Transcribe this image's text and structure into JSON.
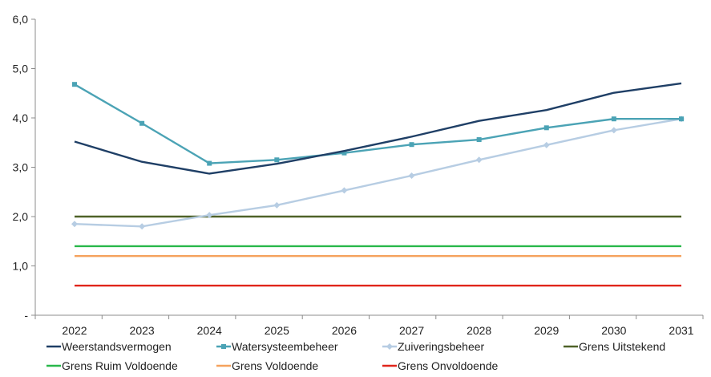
{
  "chart_data": {
    "type": "line",
    "categories": [
      "2022",
      "2023",
      "2024",
      "2025",
      "2026",
      "2027",
      "2028",
      "2029",
      "2030",
      "2031"
    ],
    "ylim": [
      0,
      6
    ],
    "yticks": [
      {
        "value": 0,
        "label": "-"
      },
      {
        "value": 1,
        "label": "1,0"
      },
      {
        "value": 2,
        "label": "2,0"
      },
      {
        "value": 3,
        "label": "3,0"
      },
      {
        "value": 4,
        "label": "4,0"
      },
      {
        "value": 5,
        "label": "5,0"
      },
      {
        "value": 6,
        "label": "6,0"
      }
    ],
    "grid": false,
    "legend_position": "bottom",
    "series": [
      {
        "name": "Weerstandsvermogen",
        "color": "#1f3f66",
        "marker": "none",
        "values": [
          3.52,
          3.11,
          2.87,
          3.07,
          3.33,
          3.62,
          3.94,
          4.16,
          4.51,
          4.7
        ]
      },
      {
        "name": "Watersysteembeheer",
        "color": "#4ba3b5",
        "marker": "square",
        "values": [
          4.68,
          3.89,
          3.08,
          3.15,
          3.29,
          3.46,
          3.56,
          3.8,
          3.98,
          3.98
        ]
      },
      {
        "name": "Zuiveringsbeheer",
        "color": "#b7cde3",
        "marker": "diamond",
        "values": [
          1.85,
          1.8,
          2.03,
          2.23,
          2.53,
          2.83,
          3.15,
          3.45,
          3.75,
          3.98
        ]
      },
      {
        "name": "Grens Uitstekend",
        "color": "#4f6228",
        "marker": "none",
        "values": [
          2.0,
          2.0,
          2.0,
          2.0,
          2.0,
          2.0,
          2.0,
          2.0,
          2.0,
          2.0
        ]
      },
      {
        "name": "Grens Ruim Voldoende",
        "color": "#29b84a",
        "marker": "none",
        "values": [
          1.4,
          1.4,
          1.4,
          1.4,
          1.4,
          1.4,
          1.4,
          1.4,
          1.4,
          1.4
        ]
      },
      {
        "name": "Grens Voldoende",
        "color": "#f5a25d",
        "marker": "none",
        "values": [
          1.2,
          1.2,
          1.2,
          1.2,
          1.2,
          1.2,
          1.2,
          1.2,
          1.2,
          1.2
        ]
      },
      {
        "name": "Grens Onvoldoende",
        "color": "#e0251b",
        "marker": "none",
        "values": [
          0.6,
          0.6,
          0.6,
          0.6,
          0.6,
          0.6,
          0.6,
          0.6,
          0.6,
          0.6
        ]
      }
    ]
  }
}
